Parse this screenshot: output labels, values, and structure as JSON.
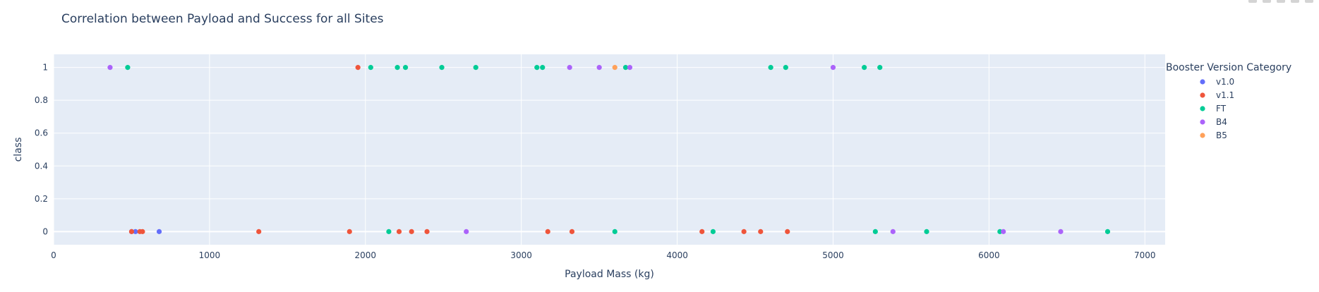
{
  "chart_data": {
    "type": "scatter",
    "title": "Correlation between Payload and Success for all Sites",
    "xlabel": "Payload Mass (kg)",
    "ylabel": "class",
    "xlim": [
      0,
      7130
    ],
    "ylim": [
      -0.08,
      1.08
    ],
    "xticks": [
      0,
      1000,
      2000,
      3000,
      4000,
      5000,
      6000,
      7000
    ],
    "xtick_labels": [
      "0",
      "1000",
      "2000",
      "3000",
      "4000",
      "5000",
      "6000",
      "7000"
    ],
    "yticks": [
      0,
      0.2,
      0.4,
      0.6,
      0.8,
      1
    ],
    "ytick_labels": [
      "0",
      "0.2",
      "0.4",
      "0.6",
      "0.8",
      "1"
    ],
    "grid": true,
    "legend": {
      "title": "Booster Version Category",
      "placement": "right"
    },
    "series": [
      {
        "name": "v1.0",
        "color": "#636efa",
        "points": [
          [
            500,
            0
          ],
          [
            525,
            0
          ],
          [
            677,
            0
          ]
        ]
      },
      {
        "name": "v1.1",
        "color": "#ef553b",
        "points": [
          [
            1952,
            1
          ],
          [
            500,
            0
          ],
          [
            553,
            0
          ],
          [
            570,
            0
          ],
          [
            1316,
            0
          ],
          [
            1898,
            0
          ],
          [
            2216,
            0
          ],
          [
            2296,
            0
          ],
          [
            2395,
            0
          ],
          [
            3170,
            0
          ],
          [
            3325,
            0
          ],
          [
            4159,
            0
          ],
          [
            4428,
            0
          ],
          [
            4535,
            0
          ],
          [
            4707,
            0
          ]
        ]
      },
      {
        "name": "FT",
        "color": "#00cc96",
        "points": [
          [
            475,
            1
          ],
          [
            2034,
            1
          ],
          [
            2205,
            1
          ],
          [
            2257,
            1
          ],
          [
            2490,
            1
          ],
          [
            2708,
            1
          ],
          [
            3100,
            1
          ],
          [
            3136,
            1
          ],
          [
            3669,
            1
          ],
          [
            4600,
            1
          ],
          [
            4696,
            1
          ],
          [
            5200,
            1
          ],
          [
            5300,
            1
          ],
          [
            2150,
            0
          ],
          [
            3600,
            0
          ],
          [
            4230,
            0
          ],
          [
            5271,
            0
          ],
          [
            5600,
            0
          ],
          [
            6070,
            0
          ],
          [
            6761,
            0
          ]
        ]
      },
      {
        "name": "B4",
        "color": "#ab63fa",
        "points": [
          [
            362,
            1
          ],
          [
            3310,
            1
          ],
          [
            3500,
            1
          ],
          [
            3696,
            1
          ],
          [
            5000,
            1
          ],
          [
            2647,
            0
          ],
          [
            5384,
            0
          ],
          [
            6092,
            0
          ],
          [
            6460,
            0
          ]
        ]
      },
      {
        "name": "B5",
        "color": "#ffa15a",
        "points": [
          [
            3600,
            1
          ]
        ]
      }
    ]
  }
}
